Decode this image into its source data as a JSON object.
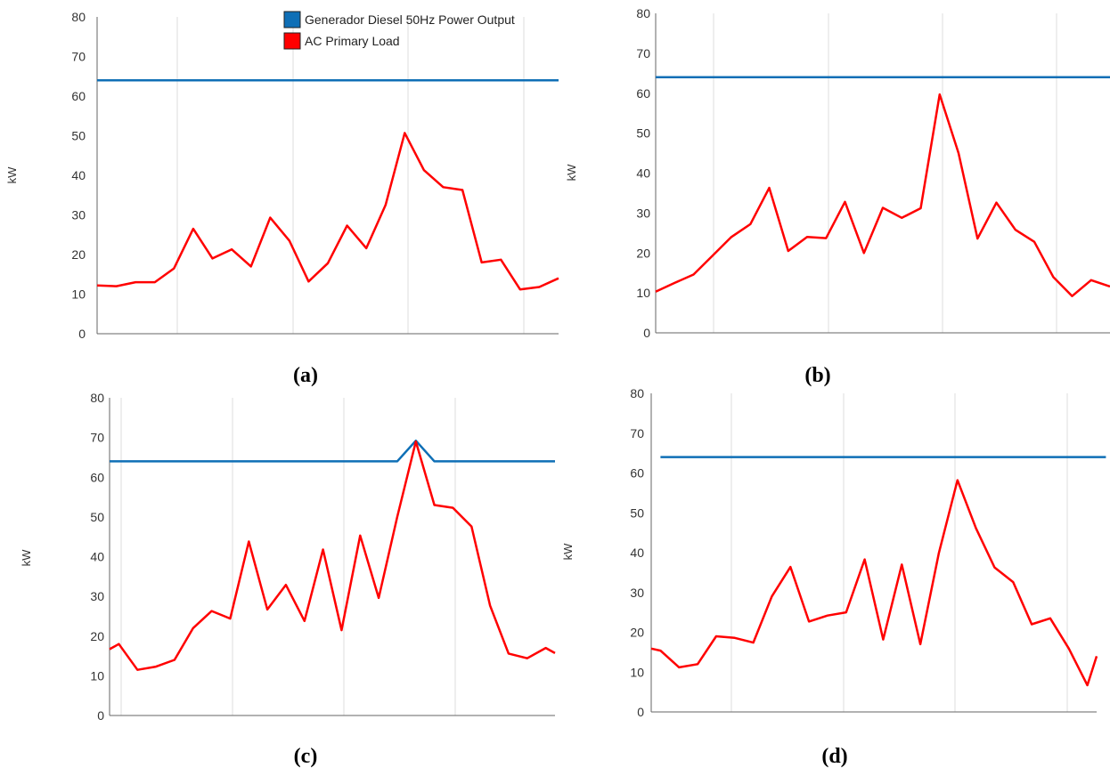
{
  "legend": {
    "entries": [
      {
        "label": "Generador Diesel 50Hz Power Output",
        "color": "#0f6fb6"
      },
      {
        "label": "AC Primary Load",
        "color": "#ff0000"
      }
    ]
  },
  "chart_data": [
    {
      "type": "line",
      "caption": "(a)",
      "ylabel": "kW",
      "ylim": [
        0,
        80
      ],
      "yticks": [
        "0",
        "10",
        "20",
        "30",
        "40",
        "50",
        "60",
        "70",
        "80"
      ],
      "grid": "vertical",
      "series": [
        {
          "name": "Generador Diesel 50Hz Power Output",
          "color": "#0f6fb6",
          "x": [
            0,
            24
          ],
          "y": [
            64,
            64
          ]
        },
        {
          "name": "AC Primary Load",
          "color": "#ff0000",
          "x": [
            0,
            1,
            2,
            3,
            4,
            5,
            6,
            7,
            8,
            9,
            10,
            11,
            12,
            13,
            14,
            15,
            16,
            17,
            18,
            19,
            20,
            21,
            22,
            23,
            24
          ],
          "y": [
            12.2,
            12,
            13,
            13,
            16.5,
            26.5,
            19,
            21.3,
            17,
            29.3,
            23.5,
            13.2,
            17.8,
            27.3,
            21.6,
            32.5,
            50.7,
            41.3,
            37,
            36.3,
            18,
            18.7,
            11.2,
            11.8,
            14
          ]
        }
      ]
    },
    {
      "type": "line",
      "caption": "(b)",
      "ylabel": "kW",
      "ylim": [
        0,
        80
      ],
      "yticks": [
        "0",
        "10",
        "20",
        "30",
        "40",
        "50",
        "60",
        "70",
        "80"
      ],
      "grid": "vertical",
      "series": [
        {
          "name": "Generador Diesel 50Hz Power Output",
          "color": "#0f6fb6",
          "x": [
            0,
            24
          ],
          "y": [
            64,
            64
          ]
        },
        {
          "name": "AC Primary Load",
          "color": "#ff0000",
          "x": [
            0,
            1,
            2,
            3,
            4,
            5,
            6,
            7,
            8,
            9,
            10,
            11,
            12,
            13,
            14,
            15,
            16,
            17,
            18,
            19,
            20,
            21,
            22,
            23,
            24
          ],
          "y": [
            10.3,
            12.5,
            14.6,
            19.3,
            24,
            27.2,
            36.3,
            20.5,
            24,
            23.7,
            32.8,
            20,
            31.3,
            28.8,
            31.2,
            59.7,
            45,
            23.6,
            32.6,
            25.8,
            22.8,
            14,
            9.2,
            13.2,
            11.6
          ]
        }
      ]
    },
    {
      "type": "line",
      "caption": "(c)",
      "ylabel": "kW",
      "ylim": [
        0,
        80
      ],
      "yticks": [
        "0",
        "10",
        "20",
        "30",
        "40",
        "50",
        "60",
        "70",
        "80"
      ],
      "grid": "vertical",
      "series": [
        {
          "name": "Generador Diesel 50Hz Power Output",
          "color": "#0f6fb6",
          "x": [
            0,
            15.5,
            16.5,
            17.5,
            24
          ],
          "y": [
            64,
            64,
            69.2,
            64,
            64
          ]
        },
        {
          "name": "AC Primary Load",
          "color": "#ff0000",
          "x": [
            0,
            0.5,
            1.5,
            2.5,
            3.5,
            4.5,
            5.5,
            6.5,
            7.5,
            8.5,
            9.5,
            10.5,
            11.5,
            12.5,
            13.5,
            14.5,
            15.5,
            16.5,
            17.5,
            18.5,
            19.5,
            20.5,
            21.5,
            22.5,
            23.5,
            24
          ],
          "y": [
            16.7,
            18,
            11.5,
            12.3,
            14,
            22,
            26.3,
            24.4,
            43.8,
            26.7,
            32.9,
            23.8,
            41.8,
            21.5,
            45.3,
            29.6,
            50,
            69,
            53,
            52.3,
            47.6,
            27.7,
            15.6,
            14.4,
            17,
            15.7
          ]
        }
      ]
    },
    {
      "type": "line",
      "caption": "(d)",
      "ylabel": "kW",
      "ylim": [
        0,
        80
      ],
      "yticks": [
        "0",
        "10",
        "20",
        "30",
        "40",
        "50",
        "60",
        "70",
        "80"
      ],
      "grid": "vertical",
      "series": [
        {
          "name": "Generador Diesel 50Hz Power Output",
          "color": "#0f6fb6",
          "x": [
            0,
            24
          ],
          "y": [
            64,
            64
          ]
        },
        {
          "name": "AC Primary Load",
          "color": "#ff0000",
          "x": [
            -0.5,
            0,
            1,
            2,
            3,
            4,
            5,
            6,
            7,
            8,
            9,
            10,
            11,
            12,
            13,
            14,
            15,
            16,
            17,
            18,
            19,
            20,
            21,
            22,
            23,
            23.5
          ],
          "y": [
            15.9,
            15.4,
            11.2,
            12,
            19,
            18.6,
            17.4,
            29,
            36.4,
            22.7,
            24.2,
            25,
            38.3,
            18.2,
            37,
            17,
            39.9,
            58.2,
            46.1,
            36.3,
            32.6,
            22,
            23.5,
            15.9,
            6.7,
            14
          ]
        }
      ]
    }
  ]
}
